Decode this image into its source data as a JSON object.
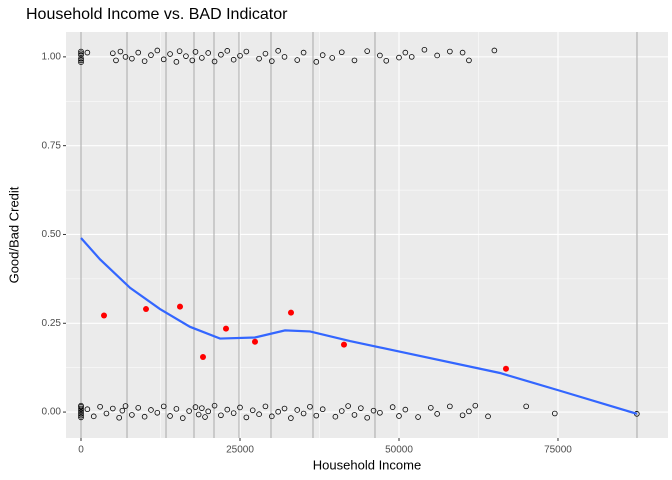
{
  "chart_data": {
    "type": "scatter",
    "title": "Household Income vs. BAD Indicator",
    "x_label": "Household Income",
    "y_label": "Good/Bad Credit",
    "xlim": [
      -2360,
      92300
    ],
    "ylim": [
      -0.073,
      1.07
    ],
    "xticks": [
      0,
      25000,
      50000,
      75000
    ],
    "yticks": [
      {
        "value": 0,
        "label": "0.00"
      },
      {
        "value": 0.25,
        "label": "0.25"
      },
      {
        "value": 0.5,
        "label": "0.50"
      },
      {
        "value": 0.75,
        "label": "0.75"
      },
      {
        "value": 1,
        "label": "1.00"
      }
    ],
    "grid": true,
    "minor_grid": true,
    "bin_breaks": [
      0,
      7233,
      13365,
      17767,
      20912,
      24843,
      29874,
      36478,
      46226,
      87421
    ],
    "series": [
      {
        "kind": "points",
        "color": "#000000",
        "x": [
          0,
          0,
          0,
          0,
          0,
          0,
          1000,
          5000,
          5500,
          6200,
          7000,
          8000,
          9000,
          10000,
          11000,
          12000,
          13000,
          14000,
          15000,
          15500,
          16500,
          17500,
          18000,
          19000,
          20000,
          21000,
          22000,
          23000,
          24000,
          25000,
          26000,
          28000,
          29000,
          30000,
          31000,
          32000,
          34000,
          35000,
          37000,
          38000,
          39500,
          41000,
          43000,
          45000,
          47000,
          48000,
          50000,
          51000,
          52000,
          54000,
          56000,
          58000,
          60000,
          61000,
          65000
        ],
        "y": [
          0.985,
          0.995,
          1.005,
          1.015,
          0.99,
          1.01,
          1.012,
          1.01,
          0.99,
          1.015,
          1.0,
          0.995,
          1.012,
          0.988,
          1.005,
          1.018,
          0.993,
          1.008,
          0.986,
          1.016,
          1.002,
          0.99,
          1.014,
          0.997,
          1.011,
          0.987,
          1.006,
          1.017,
          0.992,
          1.003,
          1.015,
          0.995,
          1.009,
          0.988,
          1.017,
          1.0,
          0.991,
          1.012,
          0.986,
          1.005,
          0.997,
          1.013,
          0.99,
          1.016,
          1.004,
          0.989,
          0.998,
          1.012,
          1.0,
          1.02,
          1.004,
          1.015,
          1.012,
          0.99,
          1.018
        ]
      },
      {
        "kind": "points",
        "color": "#000000",
        "x": [
          0,
          0,
          0,
          0,
          0,
          0,
          0,
          0,
          1000,
          2000,
          3000,
          4000,
          5000,
          6000,
          6500,
          7000,
          8000,
          9000,
          10000,
          11000,
          12000,
          13000,
          14000,
          15000,
          16000,
          17000,
          18000,
          18500,
          19000,
          19500,
          20000,
          21000,
          22000,
          23000,
          24000,
          25000,
          26000,
          27000,
          28000,
          29000,
          30000,
          31000,
          32000,
          33000,
          34000,
          35000,
          36000,
          37000,
          38000,
          40000,
          41000,
          42000,
          43000,
          44000,
          45000,
          46000,
          47000,
          49000,
          50000,
          51000,
          53000,
          55000,
          56000,
          58000,
          60000,
          61000,
          62000,
          64000,
          70000,
          74500,
          87400
        ],
        "y": [
          -0.015,
          -0.005,
          0.005,
          0.015,
          -0.01,
          0.01,
          0.0,
          0.018,
          0.008,
          -0.012,
          0.015,
          -0.004,
          0.01,
          -0.016,
          0.004,
          0.017,
          -0.008,
          0.012,
          -0.013,
          0.006,
          -0.002,
          0.016,
          -0.011,
          0.009,
          -0.017,
          0.003,
          0.014,
          -0.007,
          0.011,
          -0.014,
          0.002,
          0.018,
          -0.009,
          0.007,
          -0.003,
          0.013,
          -0.015,
          0.005,
          -0.006,
          0.016,
          -0.012,
          0.001,
          0.01,
          -0.017,
          0.006,
          -0.004,
          0.015,
          -0.01,
          0.008,
          -0.013,
          0.003,
          0.017,
          -0.008,
          0.011,
          -0.016,
          0.004,
          -0.002,
          0.014,
          -0.011,
          0.007,
          -0.014,
          0.012,
          -0.005,
          0.016,
          -0.009,
          0.002,
          0.018,
          -0.012,
          0.016,
          -0.004,
          -0.005
        ]
      },
      {
        "kind": "means",
        "color": "#ff0000",
        "x": [
          3616,
          10220,
          15566,
          19182,
          22799,
          27358,
          33019,
          41352,
          66824
        ],
        "y": [
          0.272,
          0.29,
          0.297,
          0.155,
          0.235,
          0.198,
          0.28,
          0.19,
          0.122
        ]
      },
      {
        "kind": "smooth",
        "color": "#3366ff",
        "x": [
          0,
          2987,
          7704,
          12421,
          17138,
          21855,
          27358,
          32075,
          36006,
          42296,
          50157,
          65881,
          75314,
          87421
        ],
        "y": [
          0.49,
          0.43,
          0.35,
          0.29,
          0.24,
          0.207,
          0.21,
          0.23,
          0.227,
          0.2,
          0.17,
          0.11,
          0.06,
          -0.005
        ]
      }
    ]
  }
}
